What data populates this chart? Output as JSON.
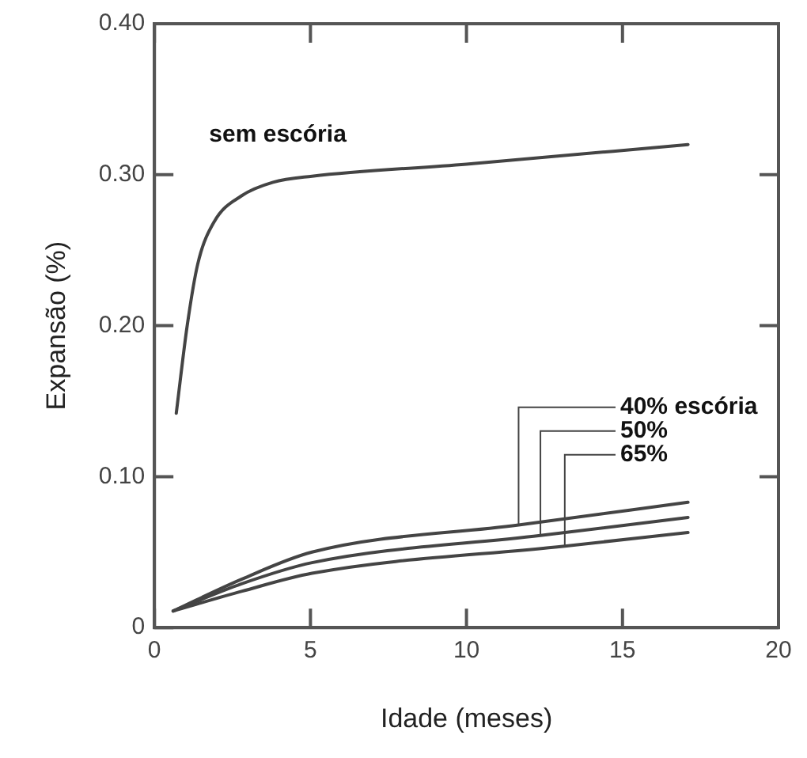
{
  "chart_data": {
    "type": "line",
    "xlabel": "Idade (meses)",
    "ylabel": "Expansão (%)",
    "xlim": [
      0,
      20
    ],
    "xticks": [
      0,
      5,
      10,
      15,
      20
    ],
    "ylim": [
      0,
      0.4
    ],
    "yticks": [
      0,
      {
        "value": 0.1,
        "label": "0.10"
      },
      {
        "value": 0.2,
        "label": "0.20"
      },
      {
        "value": 0.3,
        "label": "0.30"
      },
      {
        "value": 0.4,
        "label": "0.40"
      }
    ],
    "grid": false,
    "legend": false,
    "marker": "none",
    "line_style": "solid",
    "series": [
      {
        "name": "sem escória",
        "color": "#444444",
        "x": [
          0.7,
          1.05,
          1.39,
          1.92,
          2.79,
          3.8,
          5.05,
          10,
          17.1
        ],
        "values": [
          0.142,
          0.2,
          0.241,
          0.269,
          0.286,
          0.295,
          0.299,
          0.307,
          0.32
        ]
      },
      {
        "name": "40% escória",
        "color": "#444444",
        "x": [
          0.6,
          2.79,
          5.05,
          11.67,
          17.1
        ],
        "values": [
          0.011,
          0.032,
          0.05,
          0.068,
          0.083
        ]
      },
      {
        "name": "50%",
        "color": "#444444",
        "x": [
          0.6,
          2.79,
          5.05,
          12.37,
          17.1
        ],
        "values": [
          0.011,
          0.029,
          0.043,
          0.061,
          0.073
        ]
      },
      {
        "name": "65%",
        "color": "#444444",
        "x": [
          0.6,
          2.79,
          5.05,
          13.15,
          17.1
        ],
        "values": [
          0.011,
          0.024,
          0.036,
          0.054,
          0.063
        ]
      }
    ]
  }
}
